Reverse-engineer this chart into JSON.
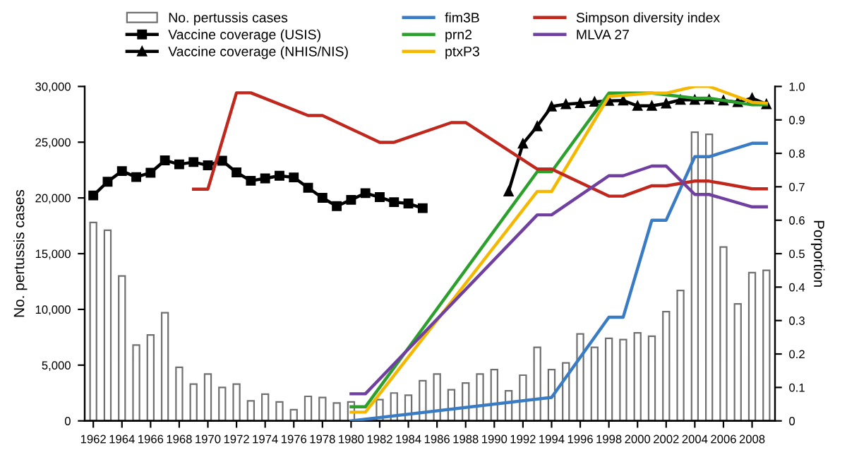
{
  "chart_data": {
    "type": "bar",
    "ylabel": "No. pertussis cases",
    "y2label": "Porportion",
    "xlim": [
      1961.4,
      2009.6
    ],
    "xticks": [
      1962,
      1964,
      1966,
      1968,
      1970,
      1972,
      1974,
      1976,
      1978,
      1980,
      1982,
      1984,
      1986,
      1988,
      1990,
      1992,
      1994,
      1996,
      1998,
      2000,
      2002,
      2004,
      2006,
      2008
    ],
    "ylim": [
      0,
      30000
    ],
    "yticks": [
      {
        "value": 0,
        "label": "0"
      },
      {
        "value": 5000,
        "label": "5,000"
      },
      {
        "value": 10000,
        "label": "10,000"
      },
      {
        "value": 15000,
        "label": "15,000"
      },
      {
        "value": 20000,
        "label": "20,000"
      },
      {
        "value": 25000,
        "label": "25,000"
      },
      {
        "value": 30000,
        "label": "30,000"
      }
    ],
    "y2lim": [
      0,
      1.0
    ],
    "y2ticks": [
      0,
      0.1,
      0.2,
      0.3,
      0.4,
      0.5,
      0.6,
      0.7,
      0.8,
      0.9,
      {
        "value": 1.0,
        "label": "1.0"
      }
    ],
    "grid": false,
    "legend": "top",
    "series": [
      {
        "name": "No. pertussis cases",
        "color": "#ffffff",
        "x": [
          1962,
          1963,
          1964,
          1965,
          1966,
          1967,
          1968,
          1969,
          1970,
          1971,
          1972,
          1973,
          1974,
          1975,
          1976,
          1977,
          1978,
          1979,
          1980,
          1981,
          1982,
          1983,
          1984,
          1985,
          1986,
          1987,
          1988,
          1989,
          1990,
          1991,
          1992,
          1993,
          1994,
          1995,
          1996,
          1997,
          1998,
          1999,
          2000,
          2001,
          2002,
          2003,
          2004,
          2005,
          2006,
          2007,
          2008,
          2009
        ],
        "values": [
          17800,
          17100,
          13000,
          6800,
          7700,
          9700,
          4800,
          3300,
          4200,
          3000,
          3300,
          1800,
          2400,
          1700,
          1000,
          2200,
          2100,
          1600,
          1700,
          null,
          1900,
          2500,
          2300,
          3600,
          4200,
          2800,
          3400,
          4200,
          4600,
          2700,
          4100,
          6600,
          4600,
          5200,
          7800,
          6600,
          7400,
          7300,
          7900,
          7600,
          9800,
          11700,
          25900,
          25700,
          15600,
          10500,
          13300,
          13500
        ]
      },
      {
        "name": "Vaccine coverage (USIS)",
        "type": "line",
        "axis": "y2",
        "color": "#000000",
        "marker": "square",
        "x": [
          1962,
          1963,
          1964,
          1965,
          1966,
          1967,
          1968,
          1969,
          1970,
          1971,
          1972,
          1973,
          1974,
          1975,
          1976,
          1977,
          1978,
          1979,
          1980,
          1981,
          1982,
          1983,
          1984,
          1985
        ],
        "values": [
          0.674,
          0.715,
          0.747,
          0.729,
          0.742,
          0.779,
          0.767,
          0.774,
          0.764,
          0.778,
          0.743,
          0.718,
          0.725,
          0.733,
          0.728,
          0.697,
          0.667,
          0.642,
          0.661,
          0.681,
          0.669,
          0.654,
          0.65,
          0.636
        ]
      },
      {
        "name": "Vaccine coverage (NHIS/NIS)",
        "type": "line",
        "axis": "y2",
        "color": "#000000",
        "marker": "triangle",
        "x": [
          1991,
          1992,
          1993,
          1994,
          1995,
          1996,
          1997,
          1998,
          1999,
          2000,
          2001,
          2002,
          2003,
          2004,
          2005,
          2006,
          2007,
          2008,
          2009
        ],
        "values": [
          0.686,
          0.829,
          0.881,
          0.94,
          0.947,
          0.95,
          0.954,
          0.957,
          0.958,
          0.942,
          0.942,
          0.949,
          0.96,
          0.96,
          0.961,
          0.958,
          0.953,
          0.965,
          0.947
        ]
      },
      {
        "name": "fim3B",
        "type": "line",
        "axis": "y2",
        "color": "#3a7cc4",
        "x": [
          1980,
          1994,
          1998,
          1999,
          2001,
          2002,
          2004,
          2005,
          2008,
          2009
        ],
        "values": [
          0.0,
          0.07,
          0.31,
          0.31,
          0.6,
          0.6,
          0.79,
          0.79,
          0.83,
          0.83
        ]
      },
      {
        "name": "prn2",
        "type": "line",
        "axis": "y2",
        "color": "#2ca02c",
        "x": [
          1980,
          1981,
          1993,
          1994,
          1998,
          2001,
          2004,
          2005,
          2008,
          2009
        ],
        "values": [
          0.042,
          0.042,
          0.745,
          0.745,
          0.98,
          0.98,
          0.965,
          0.965,
          0.945,
          0.945
        ]
      },
      {
        "name": "ptxP3",
        "type": "line",
        "axis": "y2",
        "color": "#f5b800",
        "x": [
          1980,
          1981,
          1993,
          1994,
          1998,
          2001,
          2002,
          2004,
          2005,
          2008,
          2009
        ],
        "values": [
          0.026,
          0.026,
          0.686,
          0.686,
          0.97,
          0.98,
          0.98,
          1.0,
          1.0,
          0.953,
          0.95
        ]
      },
      {
        "name": "Simpson diversity index",
        "type": "line",
        "axis": "y2",
        "color": "#c0281e",
        "x": [
          1969,
          1970,
          1972,
          1973,
          1977,
          1978,
          1982,
          1983,
          1987,
          1988,
          1993,
          1994,
          1998,
          1999,
          2001,
          2002,
          2004,
          2005,
          2008,
          2009
        ],
        "values": [
          0.693,
          0.693,
          0.981,
          0.981,
          0.913,
          0.913,
          0.833,
          0.833,
          0.892,
          0.892,
          0.753,
          0.753,
          0.672,
          0.672,
          0.703,
          0.703,
          0.717,
          0.717,
          0.694,
          0.694
        ]
      },
      {
        "name": "MLVA 27",
        "type": "line",
        "axis": "y2",
        "color": "#7040a0",
        "x": [
          1980,
          1981,
          1993,
          1994,
          1998,
          1999,
          2001,
          2002,
          2004,
          2005,
          2008,
          2009
        ],
        "values": [
          0.081,
          0.081,
          0.616,
          0.616,
          0.733,
          0.733,
          0.762,
          0.762,
          0.677,
          0.677,
          0.64,
          0.64
        ]
      }
    ]
  }
}
